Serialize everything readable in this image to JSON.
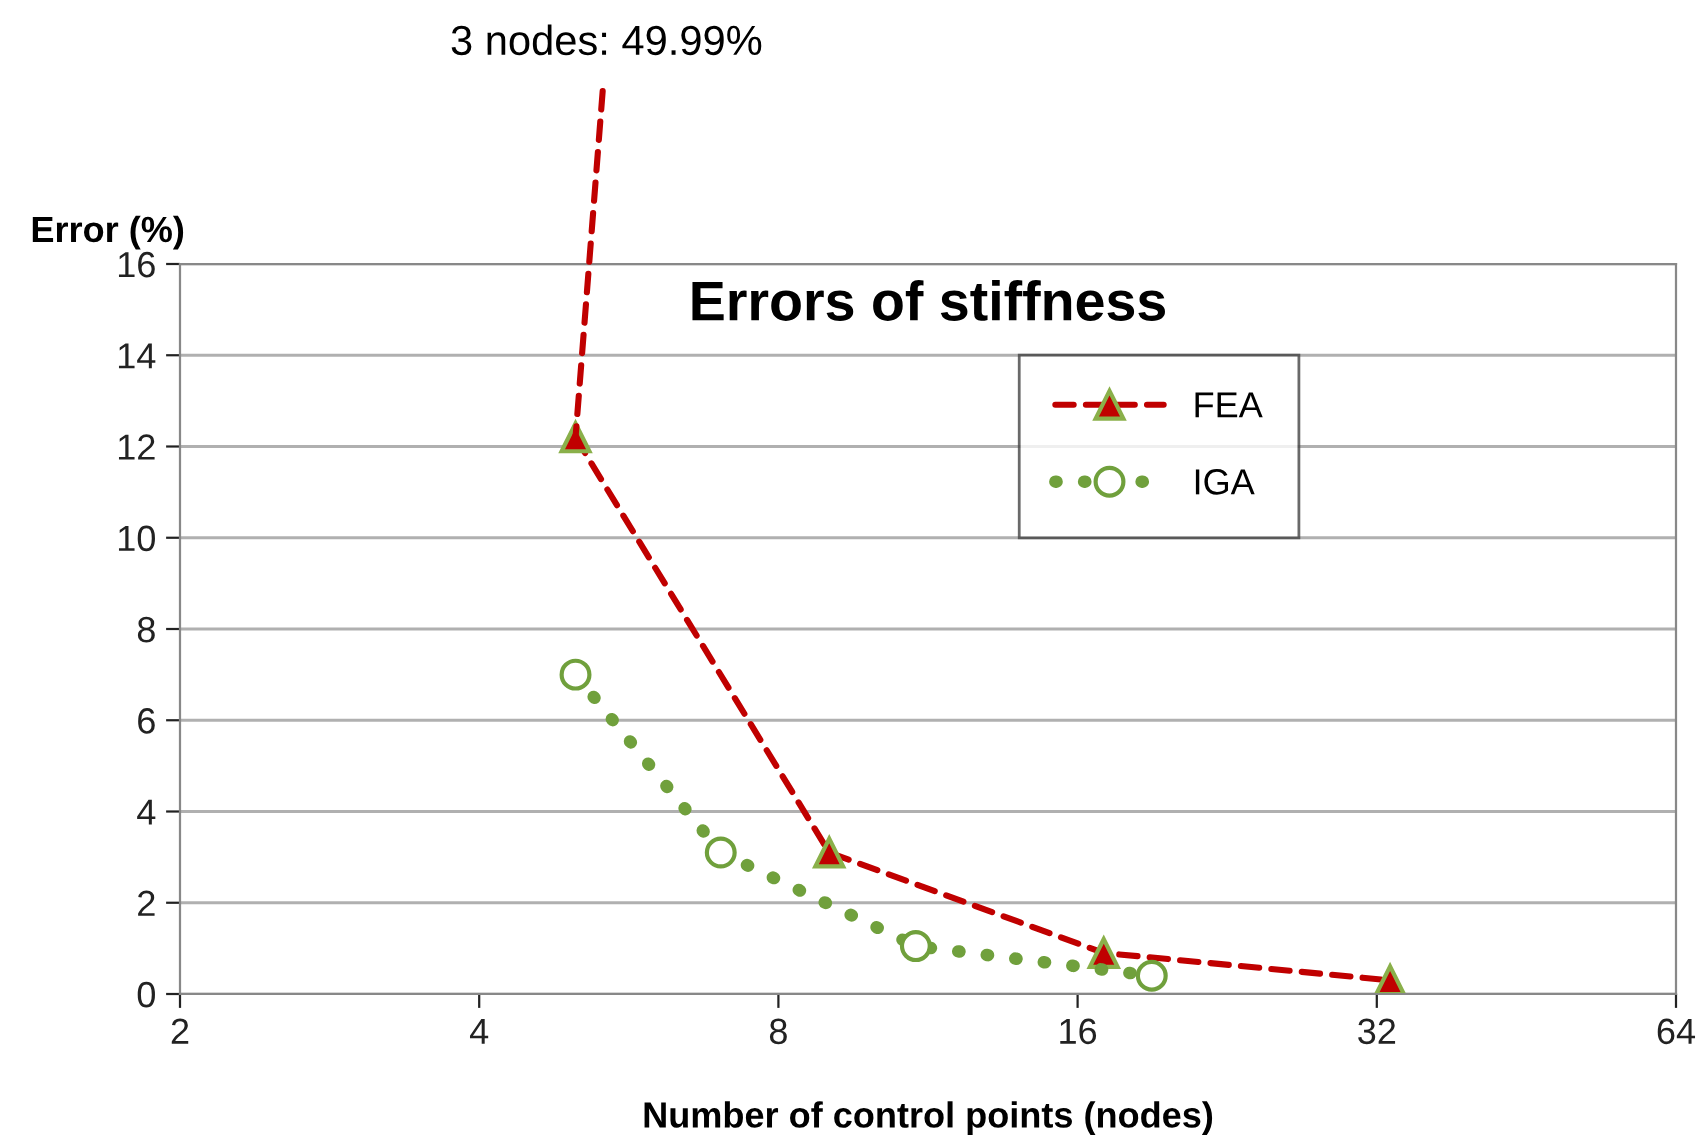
{
  "chart_data": {
    "type": "line",
    "title": "Errors of stiffness",
    "xlabel": "Number of control points (nodes)",
    "ylabel": "Error (%)",
    "annotations": [
      {
        "text": "3 nodes: 49.99%",
        "x": 5,
        "y": 12.2
      }
    ],
    "log": "x",
    "xlim": [
      2,
      64
    ],
    "xticks": [
      2,
      4,
      8,
      16,
      32,
      64
    ],
    "ylim": [
      0,
      16
    ],
    "yticks": [
      0,
      2,
      4,
      6,
      8,
      10,
      12,
      14,
      16
    ],
    "grid": "y",
    "legend": "top right",
    "series": [
      {
        "name": "FEA",
        "color": "#c00000",
        "marker": "triangle",
        "line_style": "dashed",
        "x": [
          5,
          9,
          17,
          33
        ],
        "values": [
          12.2,
          3.1,
          0.9,
          0.3
        ]
      },
      {
        "name": "IGA",
        "color": "#70a03c",
        "marker": "circle",
        "line_style": "dotted",
        "x": [
          5,
          7,
          11,
          19
        ],
        "values": [
          7.0,
          3.1,
          1.05,
          0.4
        ]
      }
    ]
  }
}
